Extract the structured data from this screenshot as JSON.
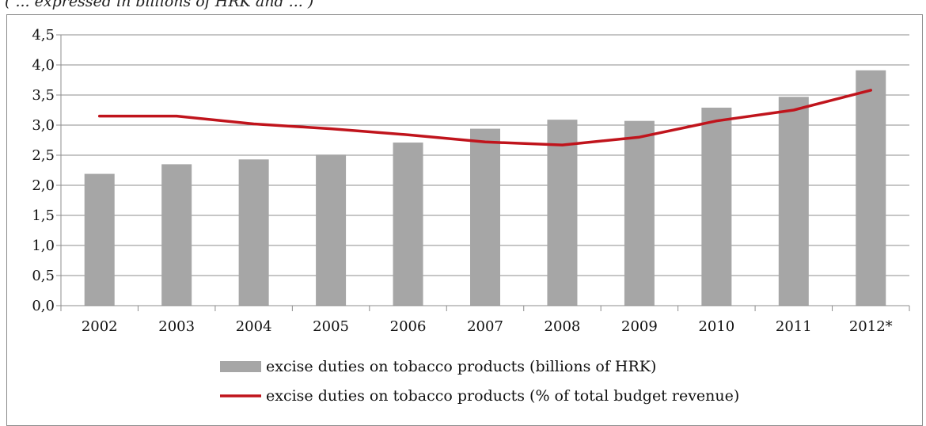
{
  "caption": "( ... expressed in billions of HRK and ... )",
  "chart_data": {
    "type": "bar",
    "categories": [
      "2002",
      "2003",
      "2004",
      "2005",
      "2006",
      "2007",
      "2008",
      "2009",
      "2010",
      "2011",
      "2012*"
    ],
    "series": [
      {
        "name": "excise duties on tobacco products (billions of HRK)",
        "type": "bar",
        "color": "#a6a6a6",
        "values": [
          2.19,
          2.35,
          2.43,
          2.51,
          2.71,
          2.94,
          3.09,
          3.07,
          3.29,
          3.47,
          3.91
        ]
      },
      {
        "name": "excise duties on tobacco products (% of total budget revenue)",
        "type": "line",
        "color": "#c0141c",
        "values": [
          3.15,
          3.15,
          3.02,
          2.94,
          2.84,
          2.72,
          2.67,
          2.8,
          3.07,
          3.25,
          3.58
        ]
      }
    ],
    "yticks": [
      "0,0",
      "0,5",
      "1,0",
      "1,5",
      "2,0",
      "2,5",
      "3,0",
      "3,5",
      "4,0",
      "4,5"
    ],
    "ylim": [
      0,
      4.5
    ],
    "grid": true,
    "legend": "bottom"
  }
}
